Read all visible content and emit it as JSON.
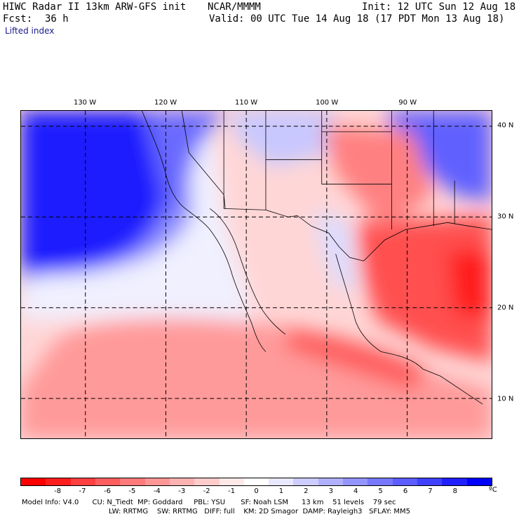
{
  "header": {
    "title": "HIWC Radar II 13km ARW-GFS init",
    "org": "NCAR/MMMM",
    "init": "Init: 12 UTC Sun 12 Aug 18",
    "fcst_label": "Fcst:",
    "fcst_value": "36 h",
    "valid": "Valid: 00 UTC Tue 14 Aug 18 (17 PDT Mon 13 Aug 18)",
    "field": "Lifted index"
  },
  "map": {
    "lon_labels": [
      {
        "lon": -130,
        "text": "130 W"
      },
      {
        "lon": -120,
        "text": "120 W"
      },
      {
        "lon": -110,
        "text": "110 W"
      },
      {
        "lon": -100,
        "text": "100 W"
      },
      {
        "lon": -90,
        "text": "90 W"
      }
    ],
    "lat_labels": [
      {
        "lat": 40,
        "text": "40 N"
      },
      {
        "lat": 30,
        "text": "30 N"
      },
      {
        "lat": 20,
        "text": "20 N"
      },
      {
        "lat": 10,
        "text": "10 N"
      }
    ],
    "extent": {
      "lon_min": -138,
      "lon_max": -79.5,
      "lat_min": 5.6,
      "lat_max": 41.7
    }
  },
  "colorbar": {
    "colors": [
      "#ff0000",
      "#ff1e1e",
      "#ff4040",
      "#ff5e5e",
      "#ff7a7a",
      "#ff9696",
      "#ffb2b2",
      "#ffcccc",
      "#ffe8e8",
      "#ffffff",
      "#e8e8ff",
      "#ccccff",
      "#b0b0ff",
      "#9494ff",
      "#7878ff",
      "#5c5cff",
      "#4040ff",
      "#2020ff",
      "#0000ff"
    ],
    "ticks": [
      "-8",
      "-7",
      "-6",
      "-5",
      "-4",
      "-3",
      "-2",
      "-1",
      "0",
      "1",
      "2",
      "3",
      "4",
      "5",
      "6",
      "7",
      "8"
    ],
    "unit": "ºC"
  },
  "footer": {
    "line1": "Model Info: V4.0      CU: N_Tiedt  MP: Goddard     PBL: YSU       SF: Noah LSM      13 km    51 levels    79 sec",
    "line2": "LW: RRTMG    SW: RRTMG   DIFF: full    KM: 2D Smagor  DAMP: Rayleigh3   SFLAY: MM5"
  }
}
